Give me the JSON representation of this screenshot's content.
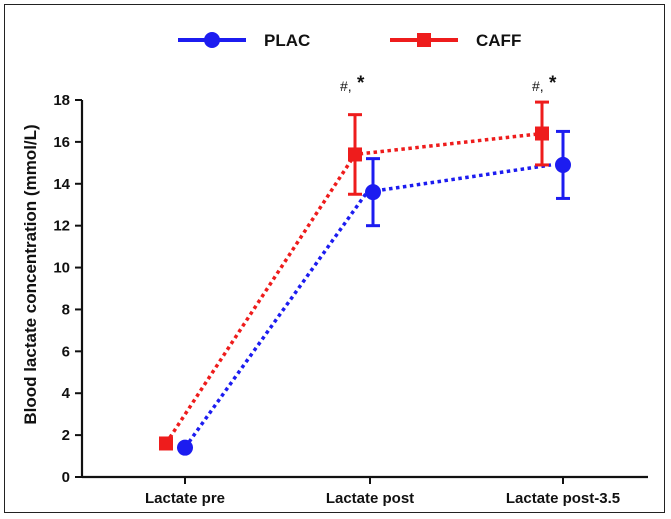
{
  "chart_data": {
    "type": "line",
    "categories": [
      "Lactate pre",
      "Lactate post",
      "Lactate post-3.5"
    ],
    "ylabel": "Blood lactate concentration (mmol/L)",
    "xlabel": "",
    "ylim": [
      0,
      18
    ],
    "yticks": [
      0,
      2,
      4,
      6,
      8,
      10,
      12,
      14,
      16,
      18
    ],
    "grid": false,
    "legend_position": "top",
    "series": [
      {
        "name": "PLAC",
        "color": "#1c1cf0",
        "marker": "circle",
        "line_style": "dotted",
        "values": [
          1.4,
          13.6,
          14.9
        ],
        "error": [
          0.0,
          1.6,
          1.6
        ]
      },
      {
        "name": "CAFF",
        "color": "#ee1c1c",
        "marker": "square",
        "line_style": "dotted",
        "values": [
          1.6,
          15.4,
          16.4
        ],
        "error": [
          0.0,
          1.9,
          1.5
        ]
      }
    ],
    "annotations": [
      {
        "category": "Lactate post",
        "hash": "#,",
        "star": "*"
      },
      {
        "category": "Lactate post-3.5",
        "hash": "#,",
        "star": "*"
      }
    ]
  }
}
